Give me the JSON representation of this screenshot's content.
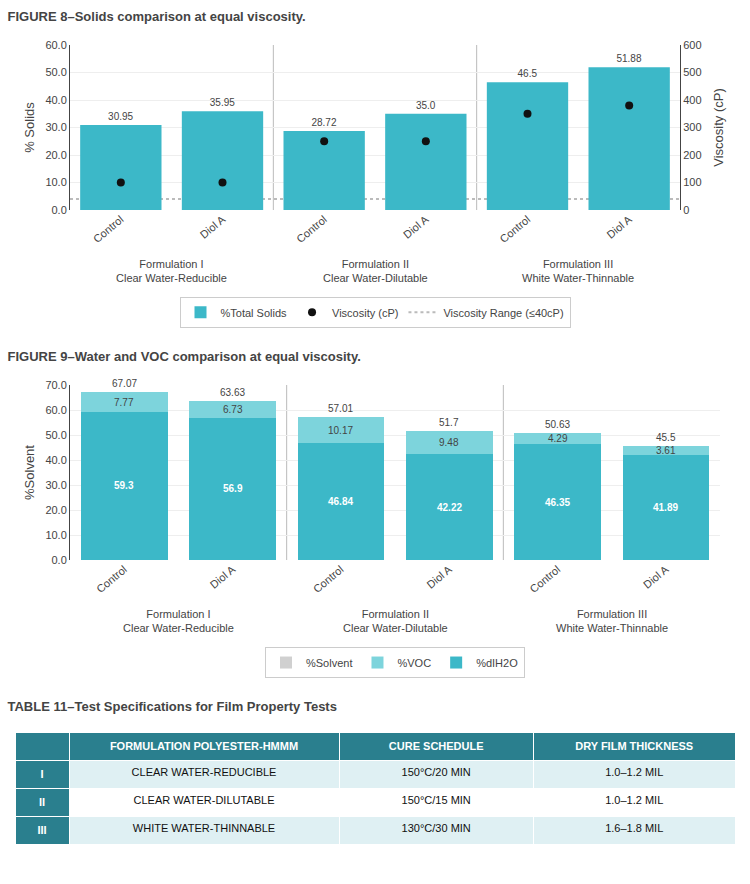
{
  "chart_data": [
    {
      "type": "bar",
      "title": "FIGURE 8–Solids comparison at equal viscosity.",
      "categories": [
        "Control",
        "Diol A",
        "Control",
        "Diol A",
        "Control",
        "Diol A"
      ],
      "groups": [
        "Formulation I",
        "Formulation II",
        "Formulation III"
      ],
      "group_subtitles": [
        "Clear Water-Reducible",
        "Clear Water-Dilutable",
        "White Water-Thinnable"
      ],
      "series": [
        {
          "name": "%Total Solids",
          "type": "bar",
          "color": "#3cb8c8",
          "values": [
            30.95,
            35.95,
            28.72,
            35.0,
            46.5,
            51.88
          ],
          "value_labels": [
            "30.95",
            "35.95",
            "28.72",
            "35.0",
            "46.5",
            "51.88"
          ]
        },
        {
          "name": "Viscosity (cP)",
          "type": "scatter",
          "axis": "y2",
          "color": "#111111",
          "marker": "circle",
          "values": [
            100,
            100,
            250,
            250,
            350,
            380
          ]
        }
      ],
      "reference_lines": [
        {
          "name": "Viscosity Range (≤40cP)",
          "axis": "y2",
          "value": 40,
          "color": "#bbbbbb",
          "line_style": "dotted"
        }
      ],
      "data_labels": true,
      "ylabel": "% Solids",
      "y2label": "Viscosity (cP)",
      "ylim": [
        0,
        60
      ],
      "yticks": [
        {
          "value": 0,
          "label": "0.0"
        },
        {
          "value": 10,
          "label": "10.0"
        },
        {
          "value": 20,
          "label": "20.0"
        },
        {
          "value": 30,
          "label": "30.0"
        },
        {
          "value": 40,
          "label": "40.0"
        },
        {
          "value": 50,
          "label": "50.0"
        },
        {
          "value": 60,
          "label": "60.0"
        }
      ],
      "y2lim": [
        0,
        600
      ],
      "y2ticks": [
        0,
        100,
        200,
        300,
        400,
        500,
        600
      ],
      "grid": true,
      "legend": "bottom"
    },
    {
      "type": "bar",
      "stacked": true,
      "title": "FIGURE 9–Water and VOC comparison at equal viscosity.",
      "categories": [
        "Control",
        "Diol A",
        "Control",
        "Diol A",
        "Control",
        "Diol A"
      ],
      "groups": [
        "Formulation I",
        "Formulation II",
        "Formulation III"
      ],
      "group_subtitles": [
        "Clear Water-Reducible",
        "Clear Water-Dilutable",
        "White Water-Thinnable"
      ],
      "series": [
        {
          "name": "%dIH2O",
          "color": "#3cb8c8",
          "values": [
            59.3,
            56.9,
            46.84,
            42.22,
            46.35,
            41.89
          ],
          "value_labels": [
            "59.3",
            "56.9",
            "46.84",
            "42.22",
            "46.35",
            "41.89"
          ]
        },
        {
          "name": "%VOC",
          "color": "#7dd4dc",
          "values": [
            7.77,
            6.73,
            10.17,
            9.48,
            4.29,
            3.61
          ],
          "value_labels": [
            "7.77",
            "6.73",
            "10.17",
            "9.48",
            "4.29",
            "3.61"
          ]
        },
        {
          "name": "%Solvent",
          "color": "#d0d0d0",
          "values": [
            null,
            null,
            null,
            null,
            null,
            null
          ]
        }
      ],
      "totals": [
        67.07,
        63.63,
        57.01,
        51.7,
        50.63,
        45.5
      ],
      "total_labels": [
        "67.07",
        "63.63",
        "57.01",
        "51.7",
        "50.63",
        "45.5"
      ],
      "data_labels": true,
      "ylabel": "%Solvent",
      "ylim": [
        0,
        70
      ],
      "yticks": [
        {
          "value": 0,
          "label": "0.0"
        },
        {
          "value": 10,
          "label": "10.0"
        },
        {
          "value": 20,
          "label": "20.0"
        },
        {
          "value": 30,
          "label": "30.0"
        },
        {
          "value": 40,
          "label": "40.0"
        },
        {
          "value": 50,
          "label": "50.0"
        },
        {
          "value": 60,
          "label": "60.0"
        },
        {
          "value": 70,
          "label": "70.0"
        }
      ],
      "grid": true,
      "legend": "bottom"
    },
    {
      "type": "table",
      "title": "TABLE 11–Test Specifications for Film Property Tests",
      "headers": [
        "FORMULATION POLYESTER-HMMM",
        "CURE SCHEDULE",
        "DRY FILM THICKNESS"
      ],
      "row_labels": [
        "I",
        "II",
        "III"
      ],
      "rows": [
        [
          "CLEAR WATER-REDUCIBLE",
          "150°C/20 MIN",
          "1.0–1.2 MIL"
        ],
        [
          "CLEAR WATER-DILUTABLE",
          "150°C/15 MIN",
          "1.0–1.2 MIL"
        ],
        [
          "WHITE WATER-THINNABLE",
          "130°C/30 MIN",
          "1.6–1.8 MIL"
        ]
      ],
      "header_color": "#2a7f8e",
      "header_text_color": "#ffffff",
      "row_colors": [
        "#dff0f3",
        "#ffffff"
      ],
      "text_color": "#111111"
    }
  ]
}
